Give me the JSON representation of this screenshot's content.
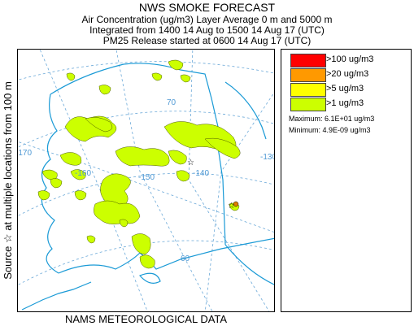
{
  "header": {
    "title": "NWS SMOKE FORECAST",
    "line2": "Air Concentration (ug/m3) Layer Average    0 m and  5000 m",
    "line3": "Integrated from 1400 14 Aug to 1500 14 Aug 17 (UTC)",
    "line4": "PM25 Release started at 0600 14 Aug 17 (UTC)"
  },
  "side_label": "Source ☆   at multiple locations   from  100 m",
  "bottom_label": "NAMS METEOROLOGICAL DATA",
  "legend": {
    "items": [
      {
        "label": ">100 ug/m3",
        "color": "#ff0000"
      },
      {
        "label": ">20 ug/m3",
        "color": "#ff9900"
      },
      {
        "label": ">5 ug/m3",
        "color": "#ffff00"
      },
      {
        "label": ">1 ug/m3",
        "color": "#ccff00"
      }
    ],
    "maximum": "Maximum: 6.1E+01 ug/m3",
    "minimum": "Minimum: 4.9E-09 ug/m3"
  },
  "map": {
    "lon_labels": {
      "m170": "-170",
      "m160": "-160",
      "m150": "-150",
      "m140": "-140",
      "m130": "-130"
    },
    "lat_labels": {
      "l70": "70",
      "l60": "60"
    },
    "colors": {
      "coast": "#1a9ad6",
      "grid": "#6aa8d8",
      "smoke": "#ccff00",
      "smoke_edge": "#4a5a00",
      "source_dot": "#e08000"
    }
  }
}
